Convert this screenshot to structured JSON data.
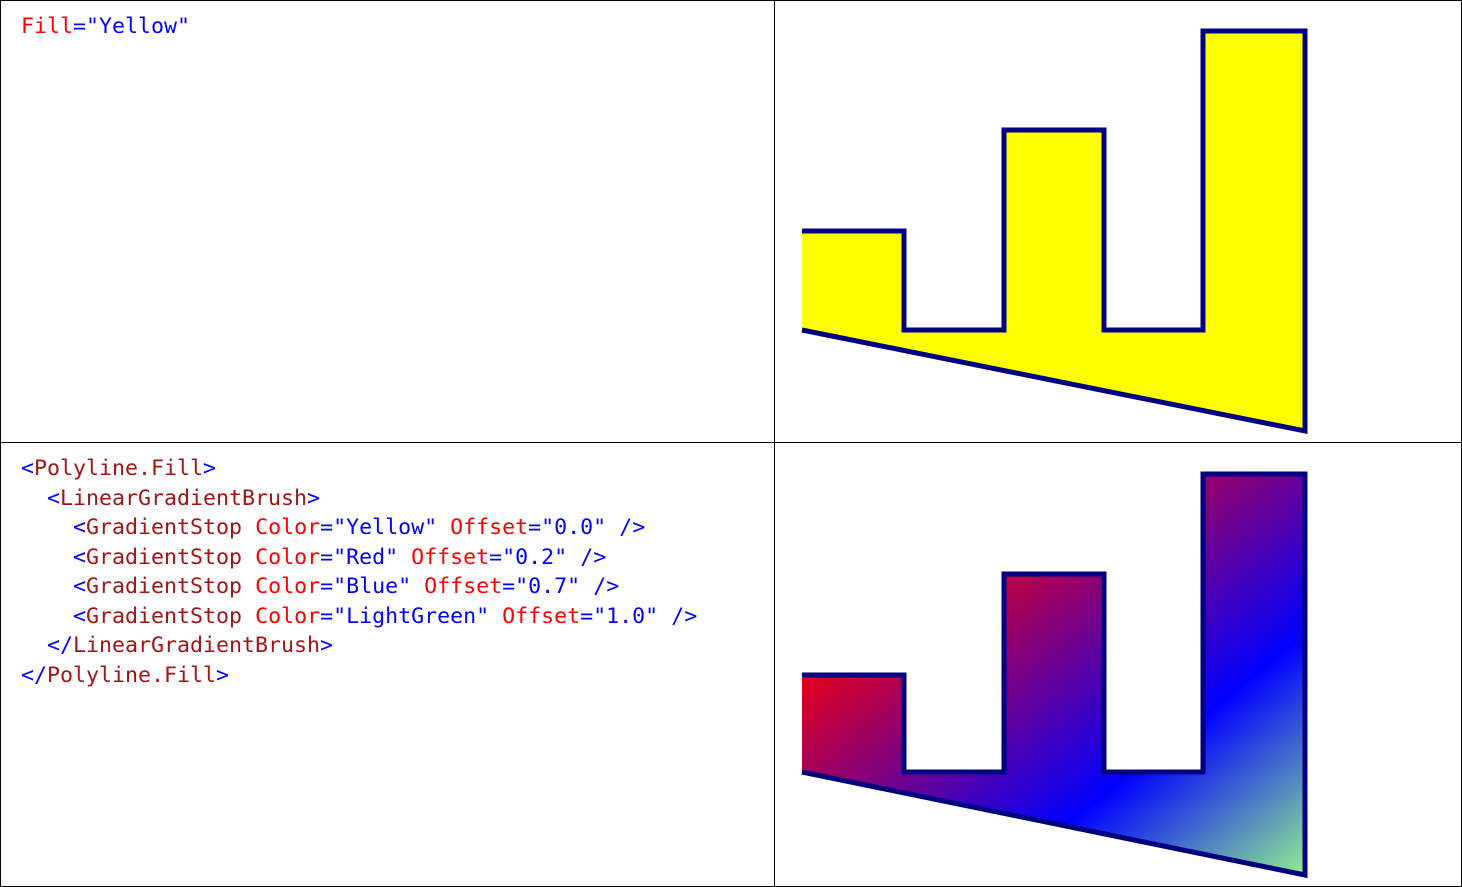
{
  "examples": [
    {
      "code_lines": [
        {
          "indent": "",
          "tokens": [
            {
              "t": "attr",
              "v": "Fill"
            },
            {
              "t": "op",
              "v": "="
            },
            {
              "t": "val",
              "v": "\"Yellow\""
            }
          ]
        }
      ],
      "shape": {
        "fill": "#ffff00",
        "stroke": "#000080",
        "gradient": null
      }
    },
    {
      "code_lines": [
        {
          "indent": "",
          "tokens": [
            {
              "t": "brk",
              "v": "<"
            },
            {
              "t": "tag",
              "v": "Polyline.Fill"
            },
            {
              "t": "brk",
              "v": ">"
            }
          ]
        },
        {
          "indent": "  ",
          "tokens": [
            {
              "t": "brk",
              "v": "<"
            },
            {
              "t": "tag",
              "v": "LinearGradientBrush"
            },
            {
              "t": "brk",
              "v": ">"
            }
          ]
        },
        {
          "indent": "    ",
          "tokens": [
            {
              "t": "brk",
              "v": "<"
            },
            {
              "t": "tag",
              "v": "GradientStop"
            },
            {
              "t": "sp",
              "v": " "
            },
            {
              "t": "attr",
              "v": "Color"
            },
            {
              "t": "op",
              "v": "="
            },
            {
              "t": "val",
              "v": "\"Yellow\""
            },
            {
              "t": "sp",
              "v": " "
            },
            {
              "t": "attr",
              "v": "Offset"
            },
            {
              "t": "op",
              "v": "="
            },
            {
              "t": "val",
              "v": "\"0.0\""
            },
            {
              "t": "sp",
              "v": " "
            },
            {
              "t": "brk",
              "v": "/>"
            }
          ]
        },
        {
          "indent": "    ",
          "tokens": [
            {
              "t": "brk",
              "v": "<"
            },
            {
              "t": "tag",
              "v": "GradientStop"
            },
            {
              "t": "sp",
              "v": " "
            },
            {
              "t": "attr",
              "v": "Color"
            },
            {
              "t": "op",
              "v": "="
            },
            {
              "t": "val",
              "v": "\"Red\""
            },
            {
              "t": "sp",
              "v": " "
            },
            {
              "t": "attr",
              "v": "Offset"
            },
            {
              "t": "op",
              "v": "="
            },
            {
              "t": "val",
              "v": "\"0.2\""
            },
            {
              "t": "sp",
              "v": " "
            },
            {
              "t": "brk",
              "v": "/>"
            }
          ]
        },
        {
          "indent": "    ",
          "tokens": [
            {
              "t": "brk",
              "v": "<"
            },
            {
              "t": "tag",
              "v": "GradientStop"
            },
            {
              "t": "sp",
              "v": " "
            },
            {
              "t": "attr",
              "v": "Color"
            },
            {
              "t": "op",
              "v": "="
            },
            {
              "t": "val",
              "v": "\"Blue\""
            },
            {
              "t": "sp",
              "v": " "
            },
            {
              "t": "attr",
              "v": "Offset"
            },
            {
              "t": "op",
              "v": "="
            },
            {
              "t": "val",
              "v": "\"0.7\""
            },
            {
              "t": "sp",
              "v": " "
            },
            {
              "t": "brk",
              "v": "/>"
            }
          ]
        },
        {
          "indent": "    ",
          "tokens": [
            {
              "t": "brk",
              "v": "<"
            },
            {
              "t": "tag",
              "v": "GradientStop"
            },
            {
              "t": "sp",
              "v": " "
            },
            {
              "t": "attr",
              "v": "Color"
            },
            {
              "t": "op",
              "v": "="
            },
            {
              "t": "val",
              "v": "\"LightGreen\""
            },
            {
              "t": "sp",
              "v": " "
            },
            {
              "t": "attr",
              "v": "Offset"
            },
            {
              "t": "op",
              "v": "="
            },
            {
              "t": "val",
              "v": "\"1.0\""
            },
            {
              "t": "sp",
              "v": " "
            },
            {
              "t": "brk",
              "v": "/>"
            }
          ]
        },
        {
          "indent": "  ",
          "tokens": [
            {
              "t": "brk",
              "v": "</"
            },
            {
              "t": "tag",
              "v": "LinearGradientBrush"
            },
            {
              "t": "brk",
              "v": ">"
            }
          ]
        },
        {
          "indent": "",
          "tokens": [
            {
              "t": "brk",
              "v": "</"
            },
            {
              "t": "tag",
              "v": "Polyline.Fill"
            },
            {
              "t": "brk",
              "v": ">"
            }
          ]
        }
      ],
      "shape": {
        "fill": null,
        "stroke": "#000080",
        "gradient": [
          {
            "color": "#ffff00",
            "offset": 0.0
          },
          {
            "color": "#ff0000",
            "offset": 0.2
          },
          {
            "color": "#0000ff",
            "offset": 0.7
          },
          {
            "color": "#90ee90",
            "offset": 1.0
          }
        ]
      }
    }
  ]
}
